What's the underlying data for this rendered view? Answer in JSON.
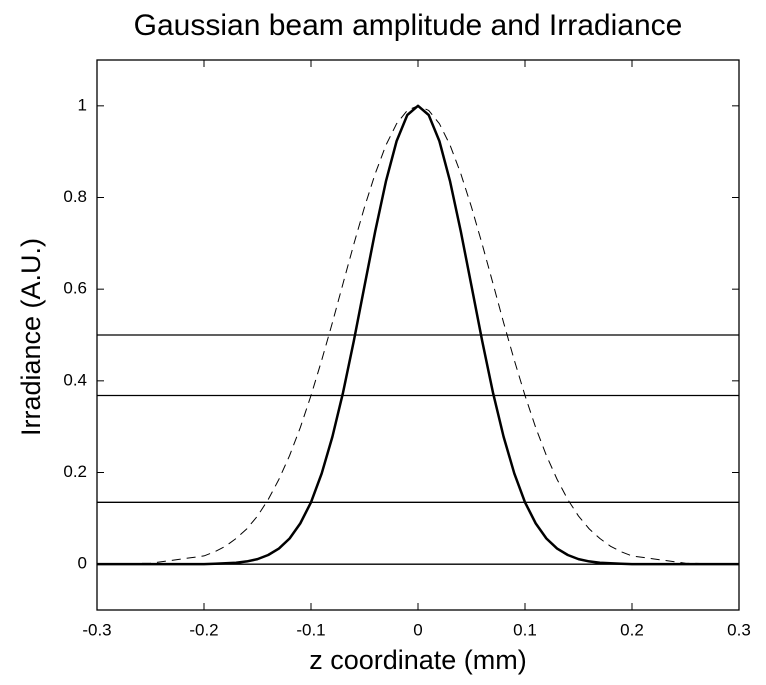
{
  "chart_data": {
    "type": "line",
    "title": "Gaussian beam amplitude and Irradiance",
    "xlabel": "z coordinate (mm)",
    "ylabel": "Irradiance (A.U.)",
    "x": [
      -0.3,
      -0.25,
      -0.2,
      -0.19,
      -0.18,
      -0.17,
      -0.16,
      -0.15,
      -0.14,
      -0.13,
      -0.12,
      -0.11,
      -0.1,
      -0.09,
      -0.08,
      -0.07,
      -0.06,
      -0.05,
      -0.04,
      -0.03,
      -0.02,
      -0.01,
      0,
      0.01,
      0.02,
      0.03,
      0.04,
      0.05,
      0.06,
      0.07,
      0.08,
      0.09,
      0.1,
      0.11,
      0.12,
      0.13,
      0.14,
      0.15,
      0.16,
      0.17,
      0.18,
      0.19,
      0.2,
      0.25,
      0.3
    ],
    "series": [
      {
        "color": "#000000",
        "dash": false,
        "width": 2.5,
        "values": [
          0,
          0,
          0,
          0.001,
          0.002,
          0.003,
          0.006,
          0.011,
          0.02,
          0.034,
          0.056,
          0.089,
          0.135,
          0.198,
          0.278,
          0.375,
          0.487,
          0.607,
          0.726,
          0.835,
          0.923,
          0.98,
          1,
          0.98,
          0.923,
          0.835,
          0.726,
          0.607,
          0.487,
          0.375,
          0.278,
          0.198,
          0.135,
          0.089,
          0.056,
          0.034,
          0.02,
          0.011,
          0.006,
          0.003,
          0.002,
          0.001,
          0,
          0,
          0
        ]
      },
      {
        "color": "#000000",
        "dash": true,
        "width": 1,
        "values": [
          0,
          0.002,
          0.018,
          0.027,
          0.039,
          0.056,
          0.077,
          0.105,
          0.141,
          0.185,
          0.237,
          0.298,
          0.368,
          0.445,
          0.527,
          0.613,
          0.698,
          0.779,
          0.852,
          0.914,
          0.961,
          0.99,
          1,
          0.99,
          0.961,
          0.914,
          0.852,
          0.779,
          0.698,
          0.613,
          0.527,
          0.445,
          0.368,
          0.298,
          0.237,
          0.185,
          0.141,
          0.105,
          0.077,
          0.056,
          0.039,
          0.027,
          0.018,
          0.002,
          0
        ]
      }
    ],
    "reference_lines": [
      0.5,
      0.368,
      0.135,
      0
    ],
    "xlim": [
      -0.3,
      0.3
    ],
    "xticks": [
      -0.3,
      -0.2,
      -0.1,
      0,
      0.1,
      0.2,
      0.3
    ],
    "ylim": [
      -0.1,
      1.1
    ],
    "yticks": [
      0,
      0.2,
      0.4,
      0.6,
      0.8,
      1
    ]
  }
}
